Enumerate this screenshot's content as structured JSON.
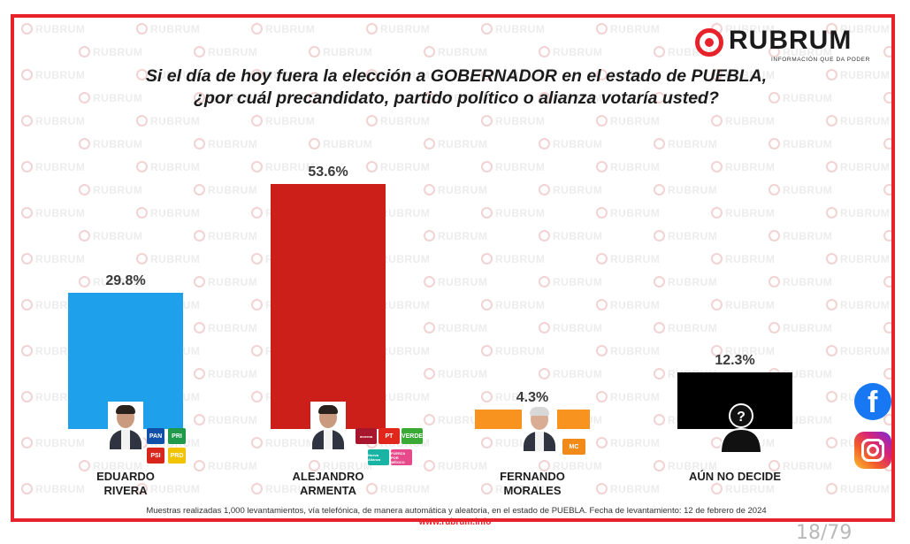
{
  "brand": {
    "name": "RUBRUM",
    "tagline": "INFORMACIÓN QUE DA PODER",
    "watermark_text": "RUBRUM",
    "accent_color": "#e8222a"
  },
  "chart_data": {
    "type": "bar",
    "title_lines": [
      "Si el día de hoy fuera la elección a GOBERNADOR en el estado de PUEBLA,",
      "¿por cuál precandidato, partido político o alianza votaría usted?"
    ],
    "categories": [
      [
        "EDUARDO",
        "RIVERA"
      ],
      [
        "ALEJANDRO",
        "ARMENTA"
      ],
      [
        "FERNANDO",
        "MORALES"
      ],
      [
        "AÚN NO DECIDE"
      ]
    ],
    "values": [
      29.8,
      53.6,
      4.3,
      12.3
    ],
    "value_labels": [
      "29.8%",
      "53.6%",
      "4.3%",
      "12.3%"
    ],
    "colors": [
      "#1ea1ea",
      "#cc1f1a",
      "#f7931e",
      "#000000"
    ],
    "ylim": [
      0,
      53.6
    ],
    "grid": false,
    "legend": "none"
  },
  "party_logos": {
    "rivera": [
      {
        "label": "PAN",
        "color": "#1050a8"
      },
      {
        "label": "PRI",
        "color": "#1f9a4a"
      },
      {
        "label": "PSI",
        "color": "#d9261c"
      },
      {
        "label": "PRD",
        "color": "#f2c300"
      }
    ],
    "armenta": [
      {
        "label": "morena",
        "color": "#a8162e"
      },
      {
        "label": "PT",
        "color": "#e1261c"
      },
      {
        "label": "VERDE",
        "color": "#3aa935"
      },
      {
        "label": "Nueva Alianza",
        "color": "#19b4a3"
      },
      {
        "label": "FUERZA POR MÉXICO",
        "color": "#e64a8a"
      }
    ],
    "morales": [
      {
        "label": "MC",
        "color": "#f28a1a"
      }
    ]
  },
  "footnote": "Muestras realizadas 1,000 levantamientos, vía telefónica, de manera automática y aleatoria, en el estado de PUEBLA. Fecha de levantamiento: 12 de febrero de 2024",
  "website": "www.rubrum.info",
  "social": {
    "facebook_icon": "facebook-icon",
    "instagram_icon": "instagram-icon"
  },
  "page_number": "18/79"
}
